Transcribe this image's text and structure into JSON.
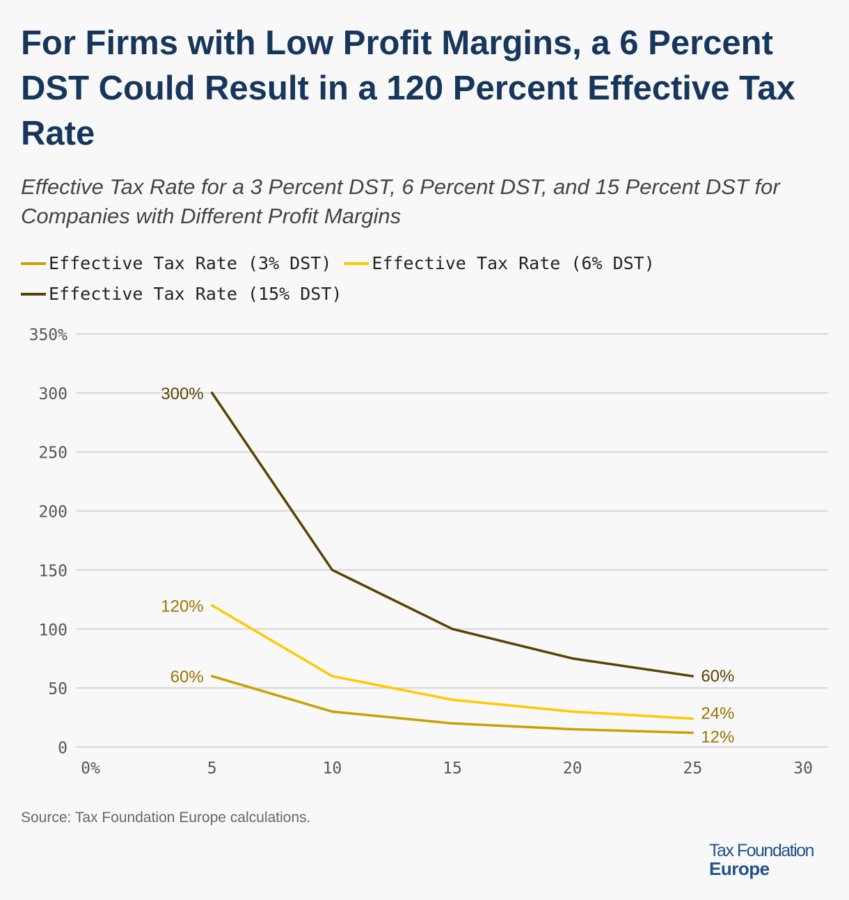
{
  "header": {
    "title": "For Firms with Low Profit Margins, a 6 Percent DST Could Result in a 120 Percent Effective Tax Rate",
    "subtitle": "Effective Tax Rate for a 3 Percent DST, 6 Percent DST, and 15 Percent DST for Companies with Different Profit Margins"
  },
  "chart_data": {
    "type": "line",
    "x": [
      5,
      10,
      15,
      20,
      25
    ],
    "series": [
      {
        "name": "Effective Tax Rate (3% DST)",
        "values": [
          60,
          30,
          20,
          15,
          12
        ],
        "color": "#caa000",
        "label_color": "#9c7400",
        "labels": {
          "start": "60%",
          "end": "12%"
        }
      },
      {
        "name": "Effective Tax Rate (6% DST)",
        "values": [
          120,
          60,
          40,
          30,
          24
        ],
        "color": "#ffc800",
        "label_color": "#9c7400",
        "labels": {
          "start": "120%",
          "end": "24%"
        }
      },
      {
        "name": "Effective Tax Rate (15% DST)",
        "values": [
          300,
          150,
          100,
          75,
          60
        ],
        "color": "#5c4200",
        "label_color": "#5c4200",
        "labels": {
          "start": "300%",
          "end": "60%"
        }
      }
    ],
    "xlim": [
      0,
      30
    ],
    "ylim": [
      0,
      350
    ],
    "x_ticks": [
      "0%",
      "5",
      "10",
      "15",
      "20",
      "25",
      "30"
    ],
    "y_ticks": [
      "0",
      "50",
      "100",
      "150",
      "200",
      "250",
      "300",
      "350%"
    ],
    "grid": "horizontal",
    "legend": "top-left"
  },
  "footer": {
    "source": "Source: Tax Foundation Europe calculations.",
    "logo_line1": "Tax Foundation",
    "logo_line2": "Europe"
  }
}
